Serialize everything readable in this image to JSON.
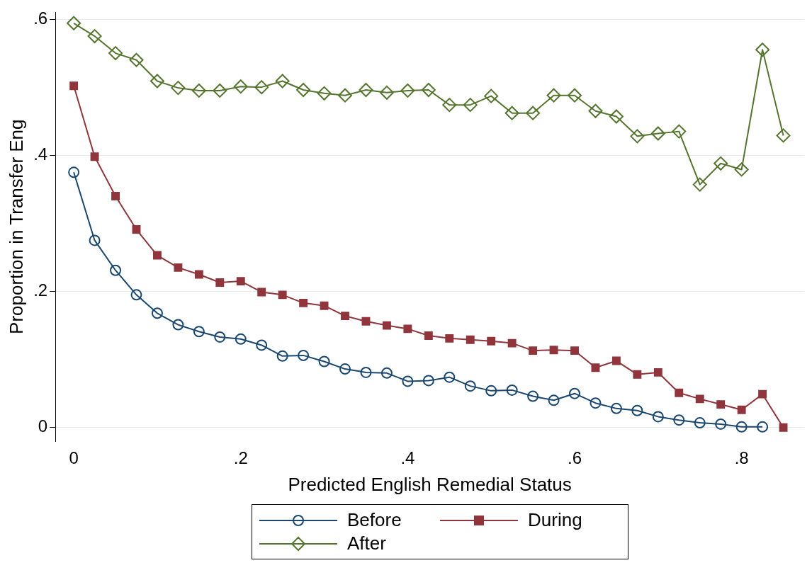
{
  "chart_data": {
    "type": "line",
    "xlabel": "Predicted English Remedial Status",
    "ylabel": "Proportion in Transfer Eng",
    "x": [
      0,
      0.025,
      0.05,
      0.075,
      0.1,
      0.125,
      0.15,
      0.175,
      0.2,
      0.225,
      0.25,
      0.275,
      0.3,
      0.325,
      0.35,
      0.375,
      0.4,
      0.425,
      0.45,
      0.475,
      0.5,
      0.525,
      0.55,
      0.575,
      0.6,
      0.625,
      0.65,
      0.675,
      0.7,
      0.725,
      0.75,
      0.775,
      0.8,
      0.825,
      0.85
    ],
    "series": [
      {
        "name": "Before",
        "color": "#1a476f",
        "marker": "circle",
        "values": [
          0.375,
          0.275,
          0.231,
          0.195,
          0.168,
          0.151,
          0.141,
          0.133,
          0.13,
          0.121,
          0.105,
          0.106,
          0.097,
          0.086,
          0.081,
          0.08,
          0.068,
          0.069,
          0.074,
          0.061,
          0.054,
          0.055,
          0.046,
          0.04,
          0.05,
          0.036,
          0.028,
          0.025,
          0.016,
          0.011,
          0.007,
          0.005,
          0.001,
          0.001,
          null
        ]
      },
      {
        "name": "During",
        "color": "#90353b",
        "marker": "square",
        "values": [
          0.502,
          0.398,
          0.34,
          0.291,
          0.253,
          0.235,
          0.225,
          0.213,
          0.215,
          0.199,
          0.195,
          0.183,
          0.179,
          0.164,
          0.156,
          0.15,
          0.145,
          0.135,
          0.131,
          0.129,
          0.127,
          0.124,
          0.113,
          0.114,
          0.113,
          0.088,
          0.098,
          0.078,
          0.081,
          0.051,
          0.042,
          0.034,
          0.026,
          0.049,
          0.0
        ]
      },
      {
        "name": "After",
        "color": "#55752f",
        "marker": "diamond",
        "values": [
          0.594,
          0.575,
          0.55,
          0.54,
          0.509,
          0.499,
          0.495,
          0.495,
          0.501,
          0.5,
          0.509,
          0.496,
          0.491,
          0.488,
          0.496,
          0.492,
          0.495,
          0.496,
          0.474,
          0.474,
          0.487,
          0.462,
          0.462,
          0.488,
          0.488,
          0.465,
          0.457,
          0.428,
          0.432,
          0.435,
          0.357,
          0.388,
          0.379,
          0.555,
          0.429
        ]
      }
    ],
    "xlim": [
      -0.022,
      0.875
    ],
    "ylim": [
      -0.02,
      0.61
    ],
    "xticks": [
      {
        "value": 0,
        "label": "0"
      },
      {
        "value": 0.2,
        "label": ".2"
      },
      {
        "value": 0.4,
        "label": ".4"
      },
      {
        "value": 0.6,
        "label": ".6"
      },
      {
        "value": 0.8,
        "label": ".8"
      }
    ],
    "yticks": [
      {
        "value": 0,
        "label": "0"
      },
      {
        "value": 0.2,
        "label": ".2"
      },
      {
        "value": 0.4,
        "label": ".4"
      },
      {
        "value": 0.6,
        "label": ".6"
      }
    ],
    "grid": "y",
    "legend": "bottom",
    "line_style": "solid"
  }
}
